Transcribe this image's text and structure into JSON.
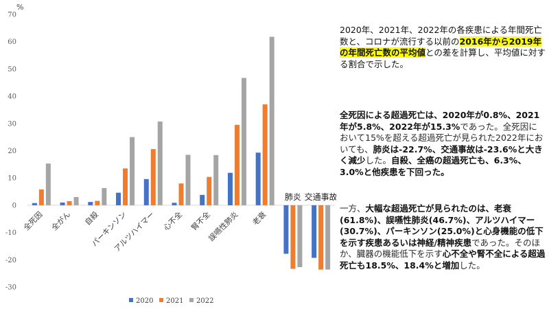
{
  "chart_data": {
    "type": "bar",
    "unit_label": "%",
    "categories": [
      "全死因",
      "全がん",
      "自殺",
      "パーキンソン",
      "アルツハイマー",
      "心不全",
      "腎不全",
      "誤嚥性肺炎",
      "老衰",
      "肺炎",
      "交通事故"
    ],
    "series": [
      {
        "name": "2020",
        "color": "#4472c4",
        "values": [
          0.8,
          1.0,
          1.2,
          4.6,
          9.6,
          0.9,
          3.8,
          11.9,
          19.3,
          -17.8,
          -19.3
        ]
      },
      {
        "name": "2021",
        "color": "#ed7d31",
        "values": [
          5.8,
          1.5,
          1.6,
          13.5,
          20.6,
          8.0,
          10.4,
          29.5,
          37.0,
          -23.3,
          -23.6
        ]
      },
      {
        "name": "2022",
        "color": "#a5a5a5",
        "values": [
          15.3,
          3.0,
          6.3,
          25.0,
          30.7,
          18.5,
          18.4,
          46.7,
          61.8,
          -22.7,
          -23.6
        ]
      }
    ],
    "ylim": [
      -30,
      70
    ],
    "yticks": [
      -30,
      -20,
      -10,
      0,
      10,
      20,
      30,
      40,
      50,
      60,
      70
    ],
    "legend_position": "bottom",
    "grid": false
  },
  "text": {
    "p1": [
      {
        "t": "2020年、2021年、2022年の各疾患による年間死亡数と、コロナが流行する以前の",
        "s": ""
      },
      {
        "t": "2016年から2019年の年間死亡数の平均値",
        "s": "hl"
      },
      {
        "t": "との差を計算し、平均値に対する割合で示した。",
        "s": ""
      }
    ],
    "p2": [
      {
        "t": "全死因による超過死亡は、2020年が0.8%、2021年が5.8%、2022年が15.3%",
        "s": "b"
      },
      {
        "t": "であった。全死因において15%を超える超過死亡が見られた2022年においても、",
        "s": "light"
      },
      {
        "t": "肺炎は-22.7%、交通事故は-23.6%と大きく減少",
        "s": "b"
      },
      {
        "t": "した。",
        "s": "light"
      },
      {
        "t": "自殺、全癌の超過死亡も、6.3%、3.0%と他疾患を下回った。",
        "s": "b"
      }
    ],
    "p3": [
      {
        "t": "一方、",
        "s": "light"
      },
      {
        "t": "大幅な超過死亡が見られたのは、老衰(61.8%)、誤嚥性肺炎(46.7%)、アルツハイマー(30.7%)、パーキンソン(25.0%)と心身機能の低下を示す疾患あるいは神経/精神疾患",
        "s": "b"
      },
      {
        "t": "であった。そのほか、臓器の機能低下を示す",
        "s": "light"
      },
      {
        "t": "心不全や腎不全による超過死亡も18.5%、18.4%と増加",
        "s": "b"
      },
      {
        "t": "した。",
        "s": "light"
      }
    ]
  }
}
